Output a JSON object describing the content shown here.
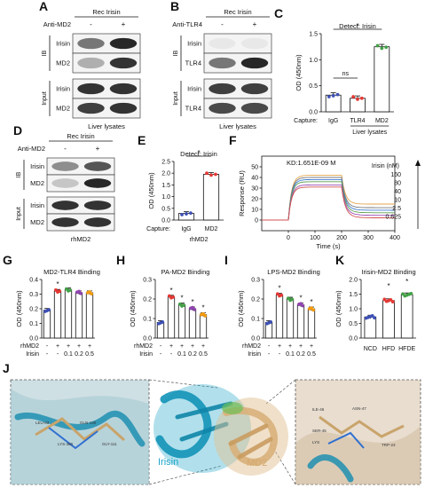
{
  "panels": {
    "A": {
      "letter": "A",
      "top_label": "Rec Irisin",
      "ab_label": "Anti-MD2",
      "minus": "-",
      "plus": "+",
      "ib": "IB",
      "input": "Input",
      "rows": [
        "Irisin",
        "MD2",
        "Irisin",
        "MD2"
      ],
      "bottom": "Liver lysates"
    },
    "B": {
      "letter": "B",
      "top_label": "Rec Irisin",
      "ab_label": "Anti-TLR4",
      "minus": "-",
      "plus": "+",
      "ib": "IB",
      "input": "Input",
      "rows": [
        "Irisin",
        "TLR4",
        "Irisin",
        "TLR4"
      ],
      "bottom": "Liver lysates"
    },
    "D": {
      "letter": "D",
      "top_label": "Rec Irisin",
      "ab_label": "Anti-MD2",
      "minus": "-",
      "plus": "+",
      "ib": "IB",
      "input": "Input",
      "rows": [
        "Irisin",
        "MD2",
        "Irisin",
        "MD2"
      ],
      "bottom": "rhMD2"
    },
    "C": {
      "letter": "C",
      "capture": "Capture:",
      "bottom": "Liver lysates"
    },
    "E": {
      "letter": "E",
      "capture": "Capture:",
      "bottom": "rhMD2"
    },
    "F": {
      "letter": "F"
    },
    "G": {
      "letter": "G"
    },
    "H": {
      "letter": "H"
    },
    "I": {
      "letter": "I"
    },
    "K": {
      "letter": "K"
    },
    "J": {
      "letter": "J",
      "irisin_label": "Irisin",
      "md2_label": "MD2",
      "left_residues": [
        "LEU-83",
        "LYS-380",
        "GLN-130",
        "GLY-111"
      ],
      "right_residues": [
        "ILE-46",
        "ASN-47",
        "SER-45",
        "TRP-23",
        "LYS"
      ]
    },
    "grouping_rows": {
      "rhMD2": "rhMD2",
      "irisin": "Irisin",
      "minus": "-",
      "plus": "+",
      "doses": [
        "0.1",
        "0.2",
        "0.5"
      ]
    }
  },
  "chart_data": [
    {
      "id": "C",
      "type": "bar",
      "title": "Detect: Irisin",
      "ylabel": "OD (450nm)",
      "categories": [
        "IgG",
        "TLR4",
        "MD2"
      ],
      "values": [
        0.32,
        0.26,
        1.25
      ],
      "ylim": [
        0,
        1.5
      ],
      "yticks": [
        0.0,
        0.5,
        1.0,
        1.5
      ],
      "colors": [
        "#3f51b5",
        "#e53935",
        "#43a047"
      ],
      "annotations": [
        "ns",
        "*"
      ]
    },
    {
      "id": "E",
      "type": "bar",
      "title": "Detect: Irisin",
      "ylabel": "OD (450nm)",
      "categories": [
        "IgG",
        "MD2"
      ],
      "values": [
        0.28,
        1.95
      ],
      "ylim": [
        0,
        2.5
      ],
      "yticks": [
        0.0,
        0.5,
        1.0,
        1.5,
        2.0,
        2.5
      ],
      "colors": [
        "#3f51b5",
        "#e53935"
      ],
      "annotations": [
        "*"
      ]
    },
    {
      "id": "F",
      "type": "line",
      "title": "KD:1.651E-09 M",
      "xlabel": "Time (s)",
      "ylabel": "Response (RU)",
      "xlim": [
        -100,
        400
      ],
      "xticks": [
        0,
        100,
        200,
        300,
        400
      ],
      "ylim": [
        -10,
        60
      ],
      "yticks": [
        0,
        10,
        20,
        30,
        40,
        50
      ],
      "legend_title": "Irisin (nM)",
      "series": [
        {
          "name": "160",
          "plateau": 42,
          "end": 15,
          "color": "#e3a64b"
        },
        {
          "name": "80",
          "plateau": 40,
          "end": 12,
          "color": "#7a7a7a"
        },
        {
          "name": "40",
          "plateau": 38,
          "end": 10,
          "color": "#3b7bd4"
        },
        {
          "name": "10",
          "plateau": 36,
          "end": 8,
          "color": "#5fa04e"
        },
        {
          "name": "2.5",
          "plateau": 33,
          "end": 6,
          "color": "#9b4fb5"
        },
        {
          "name": "0.625",
          "plateau": 31,
          "end": 4,
          "color": "#d14f4f"
        }
      ]
    },
    {
      "id": "G",
      "type": "bar",
      "title": "MD2-TLR4 Binding",
      "ylabel": "OD (450nm)",
      "values": [
        0.19,
        0.32,
        0.33,
        0.31,
        0.31
      ],
      "ylim": [
        0,
        0.4
      ],
      "yticks": [
        0.0,
        0.1,
        0.2,
        0.3,
        0.4
      ],
      "colors": [
        "#3f51b5",
        "#e53935",
        "#43a047",
        "#8e44ad",
        "#f39c12"
      ],
      "annotations": [
        "*"
      ]
    },
    {
      "id": "H",
      "type": "bar",
      "title": "PA-MD2 Binding",
      "ylabel": "OD (450nm)",
      "values": [
        0.08,
        0.21,
        0.17,
        0.15,
        0.12
      ],
      "ylim": [
        0,
        0.3
      ],
      "yticks": [
        0.0,
        0.1,
        0.2,
        0.3
      ],
      "colors": [
        "#3f51b5",
        "#e53935",
        "#43a047",
        "#8e44ad",
        "#f39c12"
      ],
      "annotations": [
        "*",
        "*",
        "*",
        "*"
      ]
    },
    {
      "id": "I",
      "type": "bar",
      "title": "LPS-MD2 Binding",
      "ylabel": "OD (450nm)",
      "values": [
        0.08,
        0.22,
        0.2,
        0.17,
        0.15
      ],
      "ylim": [
        0,
        0.3
      ],
      "yticks": [
        0.0,
        0.1,
        0.2,
        0.3
      ],
      "colors": [
        "#3f51b5",
        "#e53935",
        "#43a047",
        "#8e44ad",
        "#f39c12"
      ],
      "annotations": [
        "*",
        "*",
        "*"
      ]
    },
    {
      "id": "K",
      "type": "bar",
      "title": "Irisin-MD2 Binding",
      "ylabel": "OD (450nm)",
      "categories": [
        "NCD",
        "HFD",
        "HFDE"
      ],
      "values": [
        0.72,
        1.28,
        1.48
      ],
      "ylim": [
        0,
        2.0
      ],
      "yticks": [
        0.0,
        0.5,
        1.0,
        1.5,
        2.0
      ],
      "colors": [
        "#3f51b5",
        "#e53935",
        "#43a047"
      ],
      "annotations": [
        "*",
        "*"
      ]
    }
  ]
}
